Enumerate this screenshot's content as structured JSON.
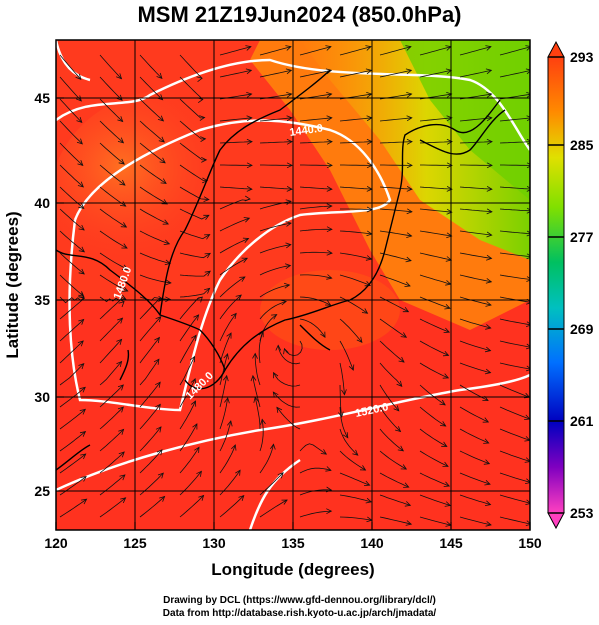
{
  "title": "MSM 21Z19Jun2024 (850.0hPa)",
  "xaxis": {
    "label": "Longitude (degrees)",
    "ticks": [
      "120",
      "125",
      "130",
      "135",
      "140",
      "145",
      "150"
    ]
  },
  "yaxis": {
    "label": "Latitude  (degrees)",
    "ticks": [
      "25",
      "30",
      "35",
      "40",
      "45"
    ]
  },
  "colorbar": {
    "ticks": [
      "293",
      "285",
      "277",
      "269",
      "261",
      "253"
    ]
  },
  "contour_labels": [
    "1440.0",
    "1480.0",
    "1480.0",
    "1520.0"
  ],
  "credits": {
    "line1": "Drawing by DCL (https://www.gfd-dennou.org/library/dcl/)",
    "line2": "Data from http://database.rish.kyoto-u.ac.jp/arch/jmadata/"
  }
}
